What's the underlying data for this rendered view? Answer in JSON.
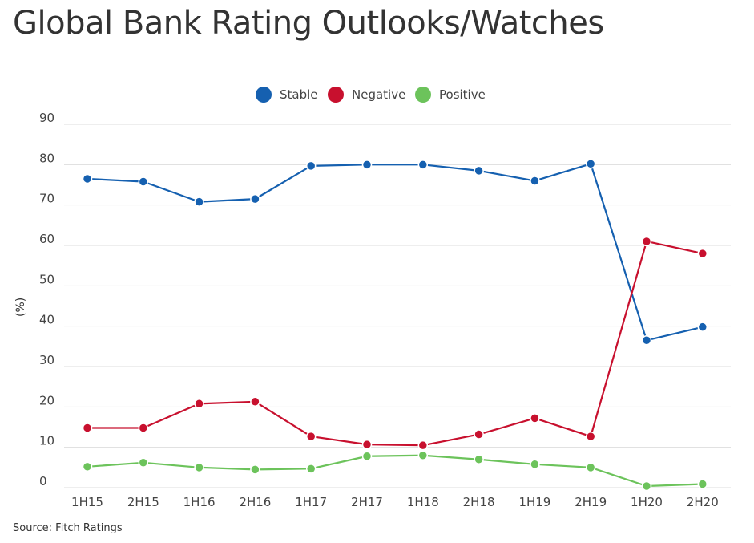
{
  "title": "Global Bank Rating Outlooks/Watches",
  "source": "Source: Fitch Ratings",
  "chart_data": {
    "type": "line",
    "title": "Global Bank Rating Outlooks/Watches",
    "xlabel": "",
    "ylabel": "(%)",
    "ylim": [
      0,
      90
    ],
    "yticks": [
      0,
      10,
      20,
      30,
      40,
      50,
      60,
      70,
      80,
      90
    ],
    "grid": true,
    "legend_position": "top-center",
    "categories": [
      "1H15",
      "2H15",
      "1H16",
      "2H16",
      "1H17",
      "2H17",
      "1H18",
      "2H18",
      "1H19",
      "2H19",
      "1H20",
      "2H20"
    ],
    "series": [
      {
        "name": "Stable",
        "color": "#1560b0",
        "values": [
          76.5,
          75.8,
          70.8,
          71.5,
          79.7,
          80.0,
          80.0,
          78.5,
          76.0,
          80.2,
          36.5,
          39.8
        ]
      },
      {
        "name": "Negative",
        "color": "#c8102e",
        "values": [
          14.8,
          14.8,
          20.8,
          21.3,
          12.7,
          10.7,
          10.5,
          13.2,
          17.2,
          12.7,
          61.0,
          58.0
        ]
      },
      {
        "name": "Positive",
        "color": "#6cc35b",
        "values": [
          5.2,
          6.2,
          5.0,
          4.5,
          4.7,
          7.8,
          8.0,
          7.0,
          5.8,
          5.0,
          0.4,
          0.9
        ]
      }
    ]
  }
}
